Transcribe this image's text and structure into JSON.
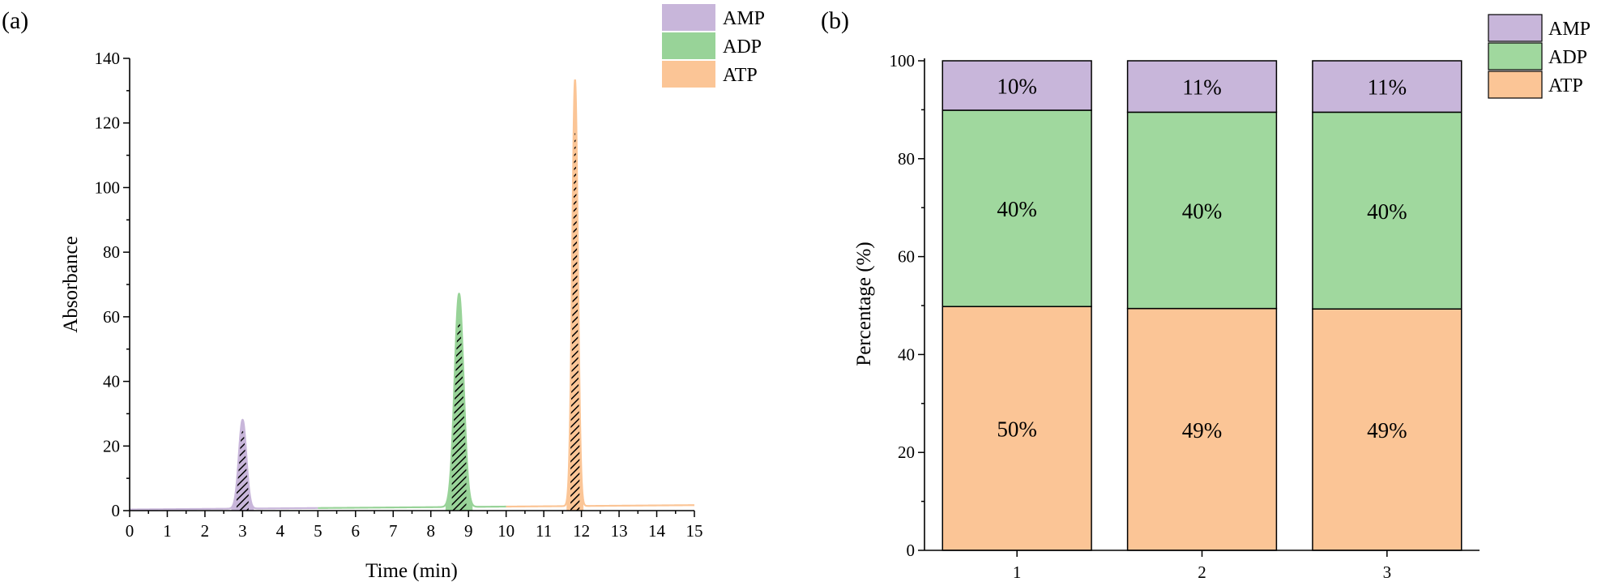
{
  "chart_data": [
    {
      "type": "line",
      "panel_label": "(a)",
      "title": "",
      "xlabel": "Time (min)",
      "ylabel": "Absorbance",
      "xlim": [
        0,
        15
      ],
      "ylim": [
        0,
        140
      ],
      "xticks": [
        "0",
        "1",
        "2",
        "3",
        "4",
        "5",
        "6",
        "7",
        "8",
        "9",
        "10",
        "11",
        "12",
        "13",
        "14",
        "15"
      ],
      "yticks": [
        "0",
        "20",
        "40",
        "60",
        "80",
        "100",
        "120",
        "140"
      ],
      "grid": false,
      "legend": "top-right",
      "series": [
        {
          "name": "AMP",
          "color": "#c8b6da",
          "peak_time": 3.0,
          "peak_height": 27.5,
          "peak_width": 0.1,
          "x_range": [
            0,
            5
          ]
        },
        {
          "name": "ADP",
          "color": "#98d398",
          "peak_time": 8.75,
          "peak_height": 66,
          "peak_width": 0.12,
          "x_range": [
            5,
            10
          ]
        },
        {
          "name": "ATP",
          "color": "#fbc596",
          "peak_time": 11.83,
          "peak_height": 132,
          "peak_width": 0.075,
          "x_range": [
            10,
            15
          ]
        }
      ]
    },
    {
      "type": "bar",
      "stacked": true,
      "panel_label": "(b)",
      "title": "",
      "xlabel": "",
      "ylabel": "Percentage (%)",
      "ylim": [
        0,
        100
      ],
      "yticks": [
        "0",
        "20",
        "40",
        "60",
        "80",
        "100"
      ],
      "categories": [
        "1",
        "2",
        "3"
      ],
      "grid": false,
      "legend": "top-right",
      "series": [
        {
          "name": "ATP",
          "color": "#fbc596",
          "values": [
            49.8,
            49.4,
            49.3
          ],
          "labels": [
            "50%",
            "49%",
            "49%"
          ]
        },
        {
          "name": "ADP",
          "color": "#a0d89e",
          "values": [
            40.1,
            40.1,
            40.2
          ],
          "labels": [
            "40%",
            "40%",
            "40%"
          ]
        },
        {
          "name": "AMP",
          "color": "#c8b6da",
          "values": [
            10.1,
            10.5,
            10.5
          ],
          "labels": [
            "10%",
            "11%",
            "11%"
          ]
        }
      ],
      "legend_order": [
        "AMP",
        "ADP",
        "ATP"
      ]
    }
  ]
}
